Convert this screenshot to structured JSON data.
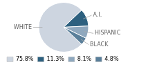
{
  "chart_data": {
    "type": "pie",
    "categories": [
      "WHITE",
      "A.I.",
      "HISPANIC",
      "BLACK"
    ],
    "values": [
      75.8,
      11.3,
      8.1,
      4.8
    ],
    "value_labels": [
      "75.8%",
      "11.3%",
      "8.1%",
      "4.8%"
    ],
    "colors": [
      "#cdd5e0",
      "#2d607f",
      "#8fa8be",
      "#5a7f9a"
    ],
    "legend": "bottom"
  }
}
